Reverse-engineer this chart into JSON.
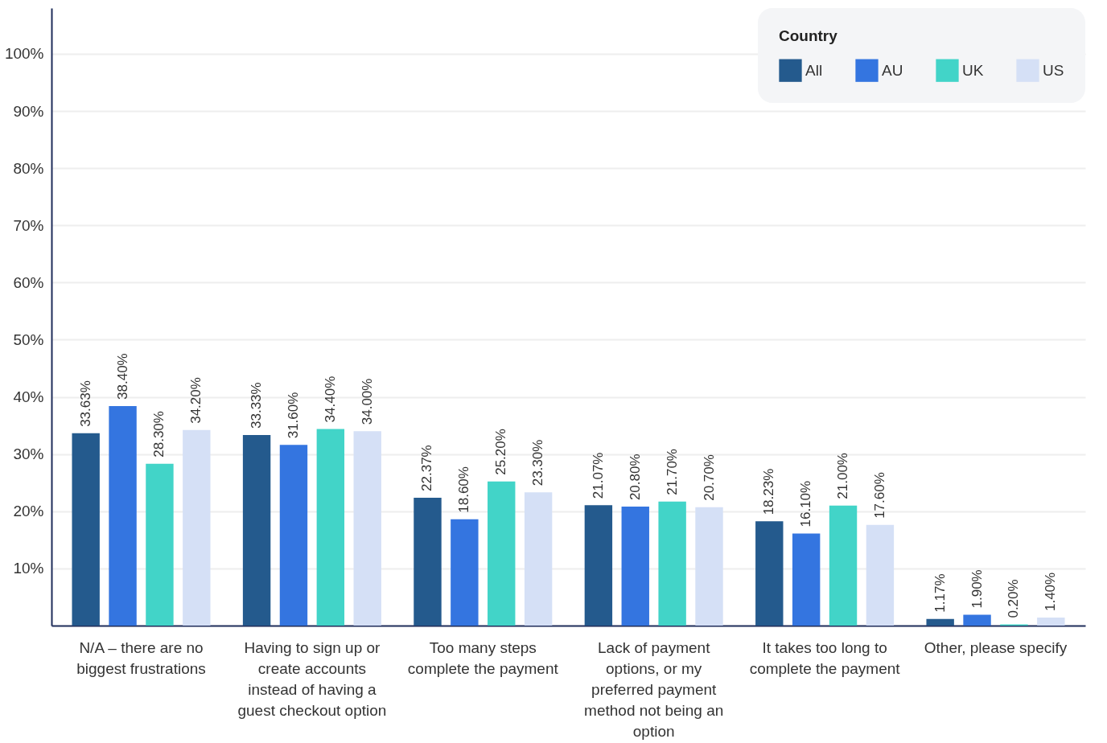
{
  "chart_data": {
    "type": "bar",
    "legend_title": "Country",
    "categories": [
      "N/A – there are no biggest frustrations",
      "Having to sign up or create accounts instead of having a guest checkout option",
      "Too many steps complete the payment",
      "Lack of payment options, or my preferred payment method not being an option",
      "It takes too long to complete the payment",
      "Other, please specify"
    ],
    "series": [
      {
        "name": "All",
        "color": "#245a8d",
        "values": [
          33.63,
          33.33,
          22.37,
          21.07,
          18.23,
          1.17
        ],
        "value_labels": [
          "33.63%",
          "33.33%",
          "22.37%",
          "21.07%",
          "18.23%",
          "1.17%"
        ]
      },
      {
        "name": "AU",
        "color": "#3475e0",
        "values": [
          38.4,
          31.6,
          18.6,
          20.8,
          16.1,
          1.9
        ],
        "value_labels": [
          "38.40%",
          "31.60%",
          "18.60%",
          "20.80%",
          "16.10%",
          "1.90%"
        ]
      },
      {
        "name": "UK",
        "color": "#42d4c8",
        "values": [
          28.3,
          34.4,
          25.2,
          21.7,
          21.0,
          0.2
        ],
        "value_labels": [
          "28.30%",
          "34.40%",
          "25.20%",
          "21.70%",
          "21.00%",
          "0.20%"
        ]
      },
      {
        "name": "US",
        "color": "#d5e0f6",
        "values": [
          34.2,
          34.0,
          23.3,
          20.7,
          17.6,
          1.4
        ],
        "value_labels": [
          "34.20%",
          "34.00%",
          "23.30%",
          "20.70%",
          "17.60%",
          "1.40%"
        ]
      }
    ],
    "ylim": [
      0,
      108
    ],
    "yticks": [
      {
        "value": 10,
        "label": "10%"
      },
      {
        "value": 20,
        "label": "20%"
      },
      {
        "value": 30,
        "label": "30%"
      },
      {
        "value": 40,
        "label": "40%"
      },
      {
        "value": 50,
        "label": "50%"
      },
      {
        "value": 60,
        "label": "60%"
      },
      {
        "value": 70,
        "label": "70%"
      },
      {
        "value": 80,
        "label": "80%"
      },
      {
        "value": 90,
        "label": "90%"
      },
      {
        "value": 100,
        "label": "100%"
      }
    ],
    "grid": "y",
    "legend": "top right"
  }
}
